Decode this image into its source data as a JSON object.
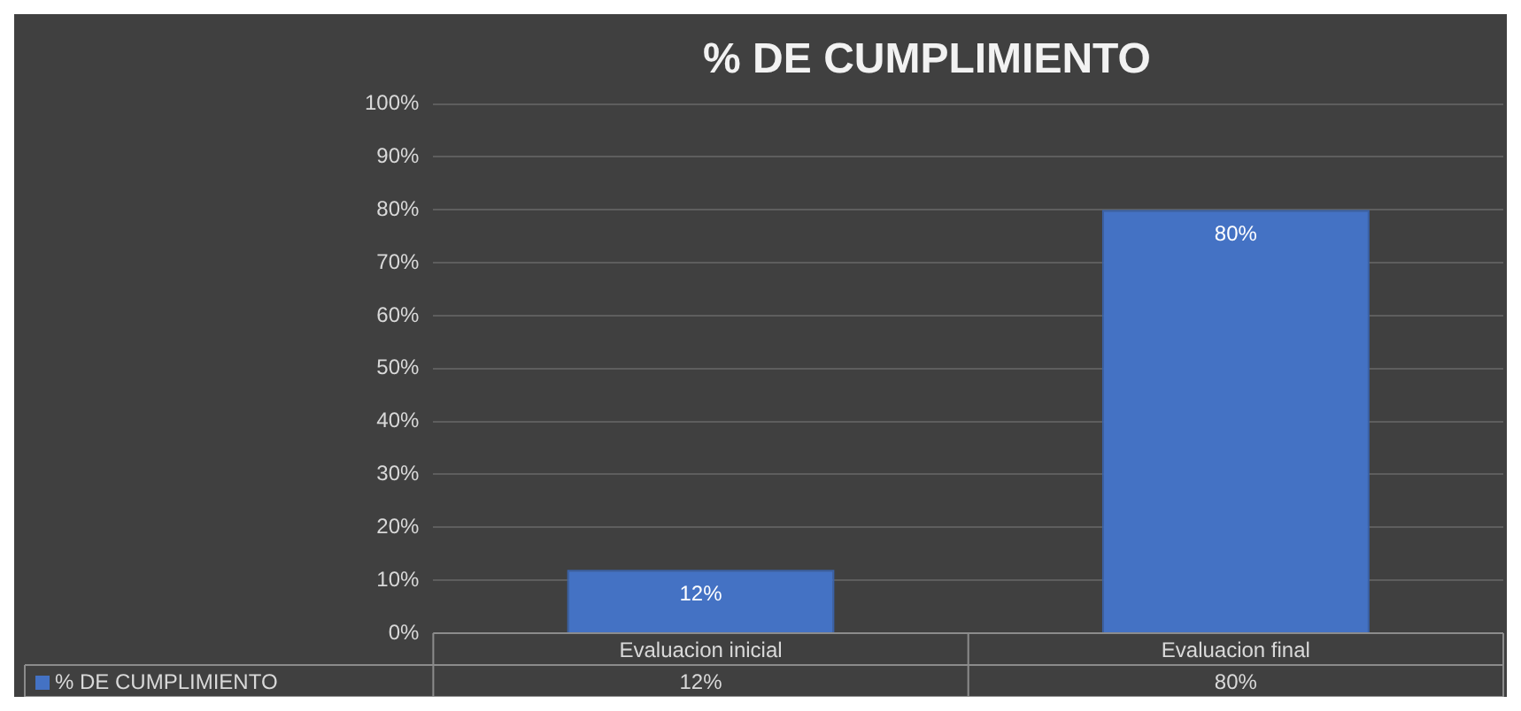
{
  "chart_data": {
    "type": "bar",
    "title": "% DE CUMPLIMIENTO",
    "categories": [
      "Evaluacion inicial",
      "Evaluacion final"
    ],
    "series": [
      {
        "name": "% DE CUMPLIMIENTO",
        "color": "#4472c4",
        "values": [
          12,
          80
        ],
        "value_labels": [
          "12%",
          "80%"
        ]
      }
    ],
    "ylim": [
      0,
      100
    ],
    "yticks": [
      {
        "value": 0,
        "label": "0%"
      },
      {
        "value": 10,
        "label": "10%"
      },
      {
        "value": 20,
        "label": "20%"
      },
      {
        "value": 30,
        "label": "30%"
      },
      {
        "value": 40,
        "label": "40%"
      },
      {
        "value": 50,
        "label": "50%"
      },
      {
        "value": 60,
        "label": "60%"
      },
      {
        "value": 70,
        "label": "70%"
      },
      {
        "value": 80,
        "label": "80%"
      },
      {
        "value": 90,
        "label": "90%"
      },
      {
        "value": 100,
        "label": "100%"
      }
    ],
    "grid": "y",
    "legend": "bottom"
  }
}
